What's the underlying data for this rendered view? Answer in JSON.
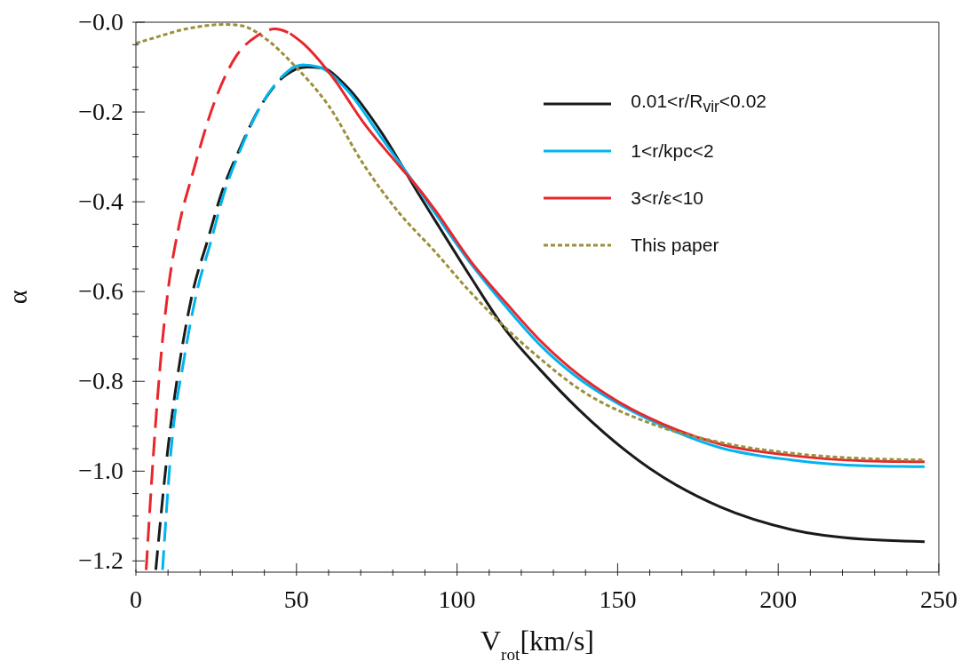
{
  "chart_data": {
    "type": "line",
    "xlabel": "V$_{rot}$[km/s]",
    "ylabel": "α",
    "xlim": [
      0,
      250
    ],
    "ylim": [
      -1.225,
      0
    ],
    "legend": "top right",
    "marker": "none",
    "grid": false,
    "xticks": [
      0,
      {
        "value": 10,
        "label": null
      },
      {
        "value": 20,
        "label": null
      },
      {
        "value": 30,
        "label": null
      },
      {
        "value": 40,
        "label": null
      },
      50,
      {
        "value": 60,
        "label": null
      },
      {
        "value": 70,
        "label": null
      },
      {
        "value": 80,
        "label": null
      },
      {
        "value": 90,
        "label": null
      },
      100,
      {
        "value": 110,
        "label": null
      },
      {
        "value": 120,
        "label": null
      },
      {
        "value": 130,
        "label": null
      },
      {
        "value": 140,
        "label": null
      },
      150,
      {
        "value": 160,
        "label": null
      },
      {
        "value": 170,
        "label": null
      },
      {
        "value": 180,
        "label": null
      },
      {
        "value": 190,
        "label": null
      },
      200,
      {
        "value": 210,
        "label": null
      },
      {
        "value": 220,
        "label": null
      },
      {
        "value": 230,
        "label": null
      },
      {
        "value": 240,
        "label": null
      },
      250
    ],
    "yticks": [
      {
        "value": 0,
        "label": "−0.0"
      },
      {
        "value": -0.05,
        "label": null
      },
      {
        "value": -0.1,
        "label": null
      },
      {
        "value": -0.15,
        "label": null
      },
      {
        "value": -0.2,
        "label": "−0.2"
      },
      {
        "value": -0.25,
        "label": null
      },
      {
        "value": -0.3,
        "label": null
      },
      {
        "value": -0.35,
        "label": null
      },
      {
        "value": -0.4,
        "label": "−0.4"
      },
      {
        "value": -0.45,
        "label": null
      },
      {
        "value": -0.5,
        "label": null
      },
      {
        "value": -0.55,
        "label": null
      },
      {
        "value": -0.6,
        "label": "−0.6"
      },
      {
        "value": -0.65,
        "label": null
      },
      {
        "value": -0.7,
        "label": null
      },
      {
        "value": -0.75,
        "label": null
      },
      {
        "value": -0.8,
        "label": "−0.8"
      },
      {
        "value": -0.85,
        "label": null
      },
      {
        "value": -0.9,
        "label": null
      },
      {
        "value": -0.95,
        "label": null
      },
      {
        "value": -1.0,
        "label": "−1.0"
      },
      {
        "value": -1.05,
        "label": null
      },
      {
        "value": -1.1,
        "label": null
      },
      {
        "value": -1.15,
        "label": null
      },
      {
        "value": -1.2,
        "label": "−1.2"
      }
    ],
    "series": [
      {
        "name": "0.01<r/R$_{vir}$<0.02",
        "color": "#1a1a1a",
        "line_style": "solid",
        "x": [
          50,
          53.3,
          58,
          65.6,
          76.7,
          87.8,
          93.3,
          104,
          115.6,
          126,
          137.8,
          160,
          182,
          204,
          227,
          245.6
        ],
        "values": [
          -0.104,
          -0.1,
          -0.102,
          -0.143,
          -0.248,
          -0.38,
          -0.443,
          -0.565,
          -0.69,
          -0.775,
          -0.862,
          -0.994,
          -1.08,
          -1.13,
          -1.152,
          -1.157
        ]
      },
      {
        "name": "1<r/kpc<2",
        "color": "#00b4f0",
        "line_style": "solid",
        "x": [
          49,
          52,
          57,
          65.6,
          76.7,
          87.8,
          93.3,
          104,
          115.6,
          126,
          137.8,
          149,
          160,
          182,
          204,
          227,
          245.6
        ],
        "values": [
          -0.1,
          -0.095,
          -0.1,
          -0.15,
          -0.26,
          -0.37,
          -0.427,
          -0.535,
          -0.637,
          -0.72,
          -0.793,
          -0.845,
          -0.886,
          -0.948,
          -0.975,
          -0.988,
          -0.99
        ]
      },
      {
        "name": "3<r/ε<10",
        "color": "#e8262b",
        "line_style": "solid",
        "x": [
          48,
          52,
          61,
          71,
          82,
          88,
          93.3,
          104,
          115.6,
          126,
          137.8,
          149,
          160,
          182,
          204,
          227,
          245.6
        ],
        "values": [
          -0.025,
          -0.047,
          -0.12,
          -0.225,
          -0.32,
          -0.37,
          -0.42,
          -0.53,
          -0.628,
          -0.71,
          -0.785,
          -0.84,
          -0.882,
          -0.94,
          -0.965,
          -0.977,
          -0.979
        ]
      },
      {
        "name": "This paper",
        "color": "#9c8f3c",
        "line_style": "dotted",
        "x": [
          0,
          5.6,
          15.6,
          27.8,
          33,
          41,
          48.9,
          60,
          71,
          82,
          93,
          104,
          114.4,
          126,
          137.8,
          160,
          182,
          204,
          227,
          245.6
        ],
        "values": [
          -0.047,
          -0.035,
          -0.015,
          -0.005,
          -0.008,
          -0.04,
          -0.093,
          -0.186,
          -0.318,
          -0.425,
          -0.51,
          -0.6,
          -0.676,
          -0.75,
          -0.816,
          -0.893,
          -0.936,
          -0.96,
          -0.972,
          -0.975
        ]
      },
      {
        "color": "#1a1a1a",
        "line_style": "dashed",
        "x": [
          6.2,
          10,
          13.9,
          17.8,
          22.2,
          26.7,
          32,
          38.9,
          45.6,
          50
        ],
        "values": [
          -1.22,
          -0.948,
          -0.746,
          -0.598,
          -0.489,
          -0.38,
          -0.287,
          -0.186,
          -0.124,
          -0.104
        ]
      },
      {
        "color": "#00b4f0",
        "line_style": "dashed",
        "x": [
          8.3,
          11,
          15,
          19,
          23.3,
          27.5,
          32.5,
          39,
          45,
          49
        ],
        "values": [
          -1.22,
          -0.95,
          -0.75,
          -0.6,
          -0.49,
          -0.38,
          -0.285,
          -0.185,
          -0.125,
          -0.1
        ]
      },
      {
        "color": "#e8262b",
        "line_style": "dashed",
        "x": [
          3.2,
          5.6,
          7.8,
          10,
          13.3,
          17.8,
          24.4,
          31,
          37.8,
          43.3,
          48
        ],
        "values": [
          -1.22,
          -0.948,
          -0.746,
          -0.598,
          -0.458,
          -0.334,
          -0.179,
          -0.078,
          -0.03,
          -0.015,
          -0.025
        ]
      }
    ]
  }
}
